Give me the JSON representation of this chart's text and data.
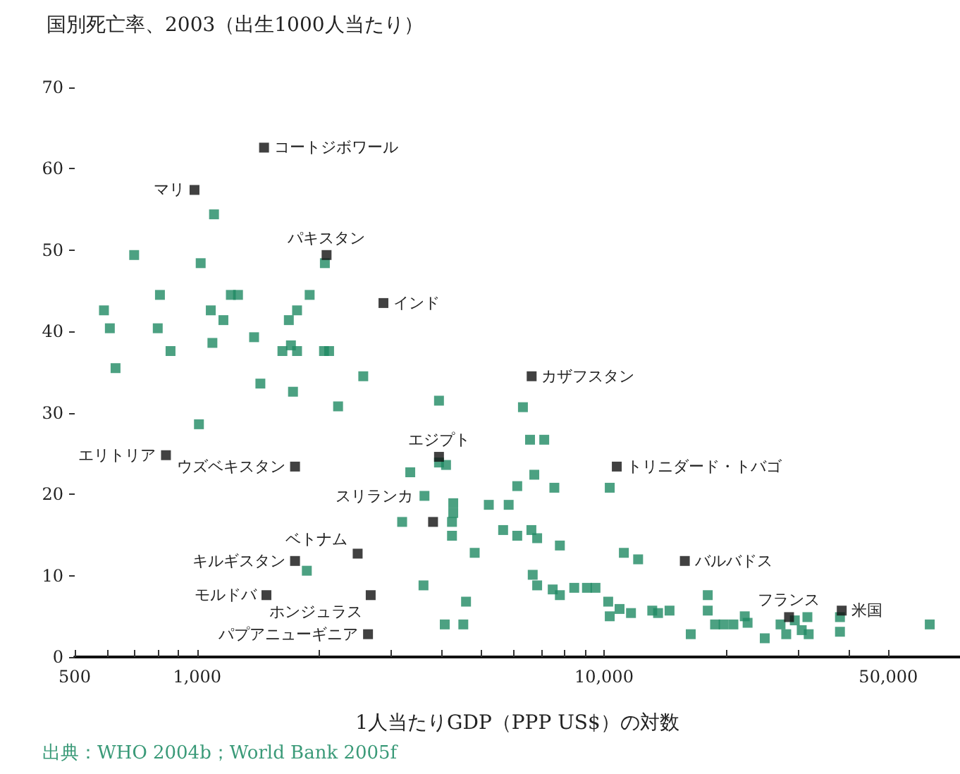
{
  "chart_data": {
    "type": "scatter",
    "title": "国別死亡率、2003（出生1000人当たり）",
    "xlabel": "1人当たりGDP（PPP US$）の対数",
    "log": "x",
    "grid": false,
    "marker": "square",
    "xlim": [
      500,
      75000
    ],
    "xticks": [
      500,
      {
        "value": 600,
        "label": null
      },
      {
        "value": 700,
        "label": null
      },
      {
        "value": 800,
        "label": null
      },
      {
        "value": 900,
        "label": null
      },
      {
        "value": 1000,
        "label": "1,000"
      },
      {
        "value": 2000,
        "label": null
      },
      {
        "value": 3000,
        "label": null
      },
      {
        "value": 4000,
        "label": null
      },
      {
        "value": 5000,
        "label": null
      },
      {
        "value": 6000,
        "label": null
      },
      {
        "value": 7000,
        "label": null
      },
      {
        "value": 8000,
        "label": null
      },
      {
        "value": 9000,
        "label": null
      },
      {
        "value": 10000,
        "label": "10,000"
      },
      {
        "value": 20000,
        "label": null
      },
      {
        "value": 30000,
        "label": null
      },
      {
        "value": 40000,
        "label": null
      },
      {
        "value": 50000,
        "label": "50,000"
      }
    ],
    "ylim": [
      0,
      70
    ],
    "yticks": [
      0,
      10,
      20,
      30,
      40,
      50,
      60,
      70
    ],
    "series": [
      {
        "color": "#1f8a63",
        "x": [
          1100,
          700,
          1020,
          810,
          1210,
          1260,
          1890,
          590,
          1080,
          1760,
          610,
          800,
          1160,
          1680,
          2060,
          1380,
          1090,
          860,
          1620,
          1700,
          1760,
          2050,
          2110,
          630,
          1430,
          1720,
          2560,
          3930,
          2220,
          1010,
          3340,
          4090,
          3620,
          4260,
          4260,
          4230,
          4230,
          3190,
          4810,
          1860,
          3600,
          4580,
          4060,
          4510,
          6320,
          3930,
          6580,
          7130,
          6120,
          6740,
          7550,
          10330,
          5210,
          5830,
          5650,
          6120,
          6630,
          6850,
          7790,
          11190,
          12130,
          6680,
          6850,
          7480,
          7790,
          8450,
          9080,
          9530,
          10240,
          10330,
          10920,
          11650,
          13140,
          13580,
          14490,
          16340,
          17990,
          17990,
          18750,
          19680,
          20800,
          22540,
          22180,
          24840,
          27160,
          28050,
          29440,
          30620,
          31850,
          31620,
          38020,
          38020,
          63200
        ],
        "values": [
          54.4,
          49.4,
          48.4,
          44.5,
          44.5,
          44.5,
          44.5,
          42.6,
          42.6,
          42.6,
          40.4,
          40.4,
          41.4,
          41.4,
          48.4,
          39.3,
          38.6,
          37.6,
          37.6,
          38.3,
          37.6,
          37.6,
          37.6,
          35.5,
          33.6,
          32.6,
          34.5,
          31.5,
          30.8,
          28.6,
          22.7,
          23.6,
          19.8,
          18.9,
          17.7,
          16.6,
          14.9,
          16.6,
          12.8,
          10.6,
          8.8,
          6.8,
          4.0,
          4.0,
          30.7,
          23.9,
          26.7,
          26.7,
          21.0,
          22.4,
          20.8,
          20.8,
          18.7,
          18.7,
          15.6,
          14.9,
          15.6,
          14.6,
          13.7,
          12.8,
          12.0,
          10.1,
          8.8,
          8.3,
          7.6,
          8.5,
          8.5,
          8.5,
          6.8,
          5.0,
          5.9,
          5.4,
          5.7,
          5.4,
          5.7,
          2.8,
          7.6,
          5.7,
          4.0,
          4.0,
          4.0,
          4.2,
          5.0,
          2.3,
          4.0,
          2.8,
          4.5,
          3.3,
          2.8,
          4.9,
          4.9,
          3.1,
          4.0
        ]
      },
      {
        "color": "#111111",
        "x": [
          1460,
          985,
          2080,
          2870,
          6640,
          838,
          1740,
          3930,
          3800,
          2480,
          1740,
          1480,
          2670,
          2630,
          10750,
          15800,
          28500,
          38400
        ],
        "values": [
          62.6,
          57.4,
          49.4,
          43.5,
          34.5,
          24.8,
          23.4,
          24.6,
          16.6,
          12.7,
          11.8,
          7.6,
          7.6,
          2.8,
          23.4,
          11.8,
          4.9,
          5.7
        ]
      }
    ],
    "annotations": [
      {
        "text": "コートジボワール",
        "x": 1460,
        "y": 62.6
      },
      {
        "text": "マリ",
        "x": 985,
        "y": 57.4
      },
      {
        "text": "パキスタン",
        "x": 2080,
        "y": 49.4
      },
      {
        "text": "インド",
        "x": 2870,
        "y": 43.5
      },
      {
        "text": "カザフスタン",
        "x": 6640,
        "y": 34.5
      },
      {
        "text": "エリトリア",
        "x": 838,
        "y": 24.8
      },
      {
        "text": "ウズベキスタン",
        "x": 1740,
        "y": 23.4
      },
      {
        "text": "エジプト",
        "x": 3930,
        "y": 24.6
      },
      {
        "text": "スリランカ",
        "x": 3800,
        "y": 16.6
      },
      {
        "text": "ベトナム",
        "x": 2480,
        "y": 12.7
      },
      {
        "text": "キルギスタン",
        "x": 1740,
        "y": 11.8
      },
      {
        "text": "モルドバ",
        "x": 1480,
        "y": 7.6
      },
      {
        "text": "ホンジュラス",
        "x": 2670,
        "y": 7.6
      },
      {
        "text": "パプアニューギニア",
        "x": 2630,
        "y": 2.8
      },
      {
        "text": "トリニダード・トバゴ",
        "x": 10750,
        "y": 23.4
      },
      {
        "text": "バルバドス",
        "x": 15800,
        "y": 11.8
      },
      {
        "text": "フランス",
        "x": 28500,
        "y": 4.9
      },
      {
        "text": "米国",
        "x": 38400,
        "y": 5.7
      },
      "出典：WHO 2004b；World Bank 2005f"
    ]
  }
}
